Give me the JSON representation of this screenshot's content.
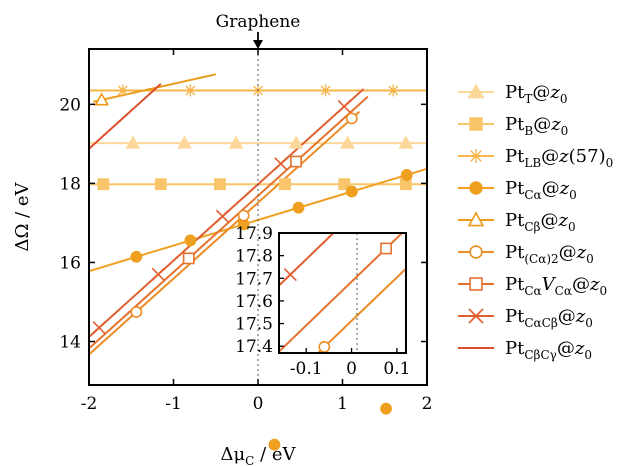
{
  "chart_data": [
    {
      "type": "line",
      "xlabel": "Δμ_C / eV",
      "ylabel": "ΔΩ / eV",
      "xlim": [
        -2,
        2
      ],
      "ylim": [
        12.9,
        21.4
      ],
      "xticks": [
        -2,
        -1,
        0,
        1,
        2
      ],
      "yticks": [
        14,
        16,
        18,
        20
      ],
      "xtick_labels": [
        "-2",
        "-1",
        "0",
        "1",
        "2"
      ],
      "ytick_labels": [
        "14",
        "16",
        "18",
        "20"
      ],
      "annotation": "Graphene",
      "vline_x": 0,
      "legend_position": "right",
      "series": [
        {
          "name": "Pt_T@z_0",
          "label": "Pt",
          "sub": "T",
          "rest": "@z",
          "rest_sub": "0",
          "color": "#fbd79a",
          "marker": "triangle_filled",
          "slope": 0.0,
          "intercept": 19.02,
          "range": [
            -2,
            2
          ],
          "markers_x": [
            -1.48,
            -0.87,
            -0.26,
            0.45,
            1.06,
            1.75
          ]
        },
        {
          "name": "Pt_B@z_0",
          "label": "Pt",
          "sub": "B",
          "rest": "@z",
          "rest_sub": "0",
          "color": "#f8c56a",
          "marker": "square_filled",
          "slope": 0.0,
          "intercept": 17.98,
          "range": [
            -2,
            2
          ],
          "markers_x": [
            -1.83,
            -1.15,
            -0.45,
            0.32,
            1.02,
            1.75
          ]
        },
        {
          "name": "Pt_LB@z(57)_0",
          "label": "Pt",
          "sub": "LB",
          "rest": "@z(57)",
          "rest_sub": "0",
          "color": "#f6b347",
          "marker": "star",
          "slope": 0.0,
          "intercept": 20.35,
          "range": [
            -2,
            2
          ],
          "markers_x": [
            -1.6,
            -0.8,
            0.0,
            0.8,
            1.6
          ]
        },
        {
          "name": "Pt_Cα@z_0",
          "label": "Pt",
          "sub": "Cα",
          "rest": "@z",
          "rest_sub": "0",
          "color": "#f0a020",
          "marker": "circle_filled",
          "slope": 0.647,
          "intercept": 17.075,
          "range": [
            -2,
            2
          ],
          "markers_x": [
            -1.44,
            -0.8,
            -0.17,
            0.48,
            1.11,
            1.76
          ]
        },
        {
          "name": "Pt_Cβ@z_0",
          "label": "Pt",
          "sub": "Cβ",
          "rest": "@z",
          "rest_sub": "0",
          "color": "#eb9a18",
          "marker": "triangle_open",
          "slope": 0.48,
          "intercept": 21.0,
          "range": [
            -1.95,
            -0.5
          ],
          "markers_x": [
            -1.85
          ]
        },
        {
          "name": "Pt_(Cα)2@z_0",
          "label": "Pt",
          "sub": "(Cα)2",
          "rest": "@z",
          "rest_sub": "0",
          "color": "#ec8c27",
          "marker": "circle_open",
          "slope": 1.92,
          "intercept": 17.512,
          "range": [
            -2,
            1.2
          ],
          "markers_x": [
            -1.44,
            -0.17,
            1.11
          ]
        },
        {
          "name": "Pt_CαVCα@z_0",
          "label": "Pt",
          "sub": "Cα",
          "rest": "V",
          "rest_sub": "Cα",
          "suffix": "@z",
          "suffix_sub": "0",
          "color": "#e4722c",
          "marker": "square_open",
          "slope": 1.93,
          "intercept": 17.685,
          "range": [
            -2,
            1.3
          ],
          "markers_x": [
            -0.82,
            0.45
          ]
        },
        {
          "name": "Pt_CαCβ@z_0",
          "label": "Pt",
          "sub": "CαCβ",
          "rest": "@z",
          "rest_sub": "0",
          "color": "#e05e2e",
          "marker": "x",
          "slope": 1.93,
          "intercept": 17.977,
          "range": [
            -2,
            1.25
          ],
          "markers_x": [
            -1.88,
            -1.18,
            -0.42,
            0.27,
            1.02
          ]
        },
        {
          "name": "Pt_CβCγ@z_0",
          "label": "Pt",
          "sub": "CβCγ",
          "rest": "@z",
          "rest_sub": "0",
          "color": "#dc4f2c",
          "marker": "none",
          "slope": 1.93,
          "intercept": 22.737,
          "range": [
            -2,
            -1.15
          ],
          "markers_x": []
        }
      ]
    },
    {
      "type": "line",
      "inset": true,
      "xlim": [
        -0.16,
        0.12
      ],
      "ylim": [
        17.37,
        17.9
      ],
      "xticks": [
        -0.1,
        0,
        0.1
      ],
      "yticks": [
        17.4,
        17.5,
        17.6,
        17.7,
        17.8,
        17.9
      ],
      "xtick_labels": [
        "-0.1",
        "0",
        "0.1"
      ],
      "ytick_labels": [
        "17.4",
        "17.5",
        "17.6",
        "17.7",
        "17.8",
        "17.9"
      ],
      "series": [
        {
          "name": "Pt_Cα@z_0",
          "color": "#f0a020",
          "marker": "circle_filled",
          "markers_x": [
            -0.17,
            0.076
          ]
        },
        {
          "name": "Pt_(Cα)2@z_0",
          "color": "#ec8c27",
          "marker": "circle_open",
          "markers_x": [
            -0.06
          ]
        },
        {
          "name": "Pt_CαVCα@z_0",
          "color": "#e4722c",
          "marker": "square_open",
          "markers_x": [
            0.076
          ]
        },
        {
          "name": "Pt_CαCβ@z_0",
          "color": "#e05e2e",
          "marker": "x",
          "markers_x": [
            -0.135
          ]
        }
      ]
    }
  ]
}
